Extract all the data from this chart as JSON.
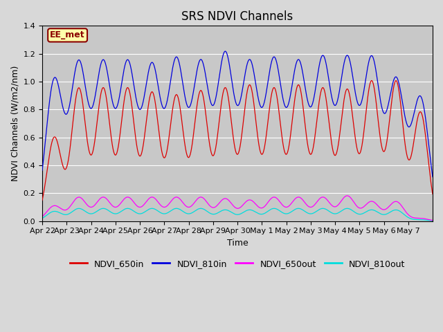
{
  "title": "SRS NDVI Channels",
  "xlabel": "Time",
  "ylabel": "NDVI Channels (W/m2/nm)",
  "ylim": [
    0,
    1.4
  ],
  "background_color": "#d8d8d8",
  "plot_bg_color": "#d8d8d8",
  "inner_bg_color": "#c8c8c8",
  "annotation_text": "EE_met",
  "annotation_bg": "#ffffaa",
  "annotation_border": "#8b0000",
  "colors": {
    "NDVI_650in": "#dd0000",
    "NDVI_810in": "#0000dd",
    "NDVI_650out": "#ff00ff",
    "NDVI_810out": "#00dddd"
  },
  "n_days": 16,
  "peaks": {
    "NDVI_650in": [
      0.6,
      0.95,
      0.95,
      0.95,
      0.92,
      0.9,
      0.93,
      0.95,
      0.97,
      0.95,
      0.97,
      0.95,
      0.94,
      1.0,
      1.0,
      0.78
    ],
    "NDVI_810in": [
      1.01,
      1.12,
      1.12,
      1.12,
      1.1,
      1.14,
      1.12,
      1.18,
      1.12,
      1.14,
      1.12,
      1.15,
      1.15,
      1.15,
      1.0,
      0.88
    ],
    "NDVI_650out": [
      0.11,
      0.17,
      0.17,
      0.17,
      0.17,
      0.17,
      0.17,
      0.16,
      0.15,
      0.17,
      0.17,
      0.17,
      0.18,
      0.14,
      0.14,
      0.02
    ],
    "NDVI_810out": [
      0.07,
      0.09,
      0.09,
      0.09,
      0.09,
      0.09,
      0.09,
      0.08,
      0.08,
      0.09,
      0.09,
      0.09,
      0.09,
      0.08,
      0.08,
      0.01
    ]
  },
  "tick_labels": [
    "Apr 22",
    "Apr 23",
    "Apr 24",
    "Apr 25",
    "Apr 26",
    "Apr 27",
    "Apr 28",
    "Apr 29",
    "Apr 30",
    "May 1",
    "May 2",
    "May 3",
    "May 4",
    "May 5",
    "May 6",
    "May 7"
  ],
  "grid_color": "#ffffff",
  "title_fontsize": 12,
  "label_fontsize": 9,
  "tick_fontsize": 8,
  "legend_fontsize": 9
}
